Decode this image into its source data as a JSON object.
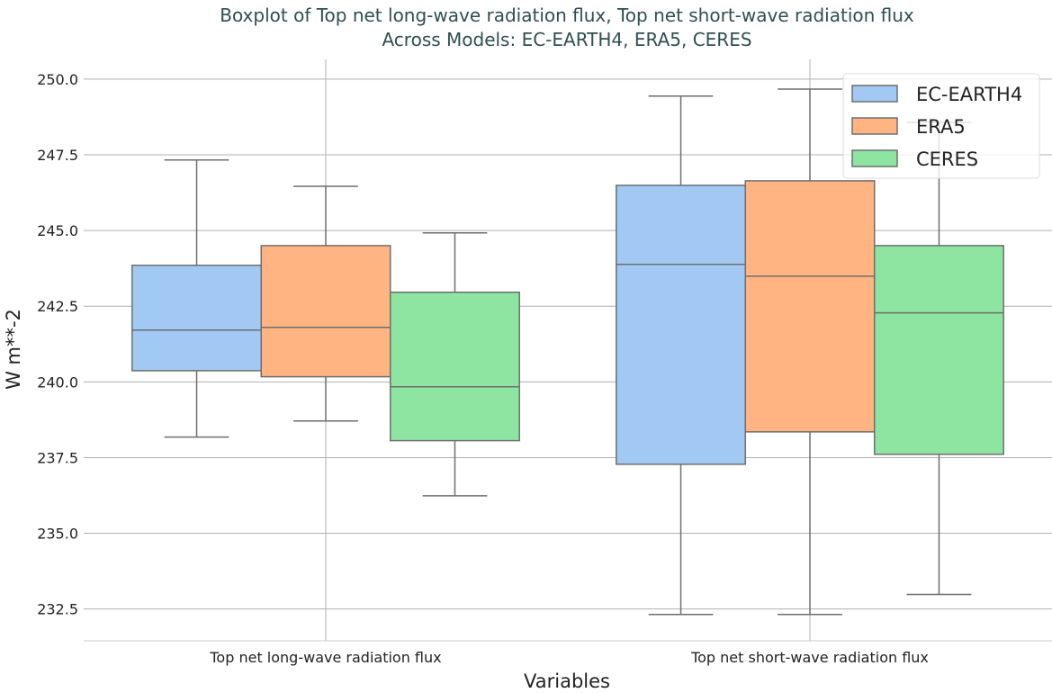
{
  "chart_data": {
    "type": "boxplot",
    "title": "Boxplot of Top net long-wave radiation flux, Top net short-wave radiation flux",
    "subtitle": "Across Models: EC-EARTH4, ERA5, CERES",
    "xlabel": "Variables",
    "ylabel": "W m**-2",
    "ylim": [
      231.45,
      250.65
    ],
    "yticks": [
      "232.5",
      "235.0",
      "237.5",
      "240.0",
      "242.5",
      "245.0",
      "247.5",
      "250.0"
    ],
    "grid": true,
    "legend_position": "top-right",
    "categories": [
      "Top net long-wave radiation flux",
      "Top net short-wave radiation flux"
    ],
    "series": [
      {
        "name": "EC-EARTH4",
        "color": "#a1c9f4",
        "boxes": [
          {
            "whisker_low": 238.18,
            "q1": 240.37,
            "median": 241.71,
            "q3": 243.85,
            "whisker_high": 247.33
          },
          {
            "whisker_low": 232.32,
            "q1": 237.28,
            "median": 243.88,
            "q3": 246.49,
            "whisker_high": 249.44
          }
        ]
      },
      {
        "name": "ERA5",
        "color": "#ffb482",
        "boxes": [
          {
            "whisker_low": 238.71,
            "q1": 240.17,
            "median": 241.8,
            "q3": 244.5,
            "whisker_high": 246.46
          },
          {
            "whisker_low": 232.32,
            "q1": 238.35,
            "median": 243.49,
            "q3": 246.64,
            "whisker_high": 249.67
          }
        ]
      },
      {
        "name": "CERES",
        "color": "#8de5a1",
        "boxes": [
          {
            "whisker_low": 236.24,
            "q1": 238.06,
            "median": 239.84,
            "q3": 242.96,
            "whisker_high": 244.92
          },
          {
            "whisker_low": 232.98,
            "q1": 237.61,
            "median": 242.28,
            "q3": 244.5,
            "whisker_high": 248.57
          }
        ]
      }
    ]
  },
  "colors": {
    "title": "#2f4f4f",
    "edge": "#6e6e6e",
    "grid": "#b0b0b0"
  }
}
